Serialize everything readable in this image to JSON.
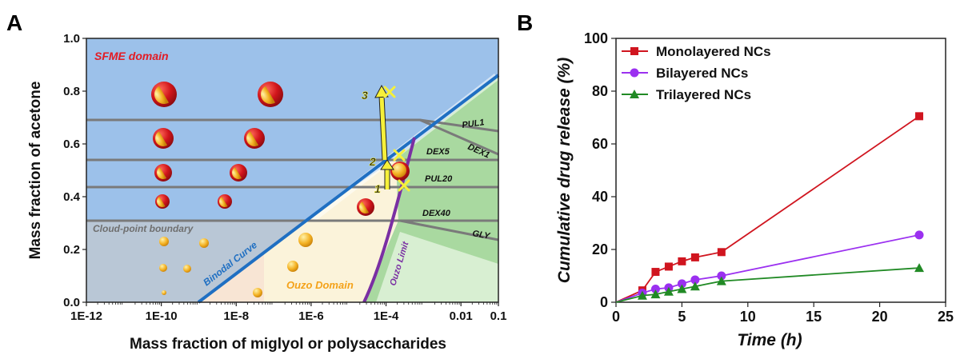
{
  "panel_a_label": "A",
  "panel_b_label": "B",
  "colors": {
    "sfme": "#9cc1ea",
    "cloud": "#b9c7d6",
    "ouzo": "#fbf6d6",
    "green": "#a9d9a0",
    "binodal": "#1f6fc2",
    "ouzo_limit": "#7a2fa3",
    "grid_line": "#7a7a7a",
    "droplet_red": "#d1151b",
    "droplet_yellow": "#f4b224",
    "arrow": "#f6f03a",
    "mono": "#d0151f",
    "bi": "#9b30f0",
    "tri": "#218a25"
  },
  "chart_data": [
    {
      "type": "diagram",
      "xlabel": "Mass fraction of miglyol or polysaccharides",
      "ylabel": "Mass fraction of acetone",
      "xscale": "log",
      "xticks": [
        "1E-12",
        "1E-10",
        "1E-8",
        "1E-6",
        "1E-4",
        "0.01",
        "0.1"
      ],
      "xtick_values": [
        -12,
        -10,
        -8,
        -6,
        -4,
        -2,
        -1
      ],
      "xlim_log10": [
        -12,
        -1
      ],
      "yticks": [
        "0.0",
        "0.2",
        "0.4",
        "0.6",
        "0.8",
        "1.0"
      ],
      "ytick_values": [
        0,
        0.2,
        0.4,
        0.6,
        0.8,
        1.0
      ],
      "ylim": [
        0,
        1
      ],
      "region_labels": {
        "sfme": "SFME domain",
        "cloud": "Cloud-point boundary",
        "binodal": "Binodal Curve",
        "ouzo": "Ouzo Domain",
        "ouzo_limit": "Ouzo Limit"
      },
      "polymer_lines": [
        {
          "label": "PUL1",
          "y": 0.7
        },
        {
          "label": "DEX1",
          "y": 0.7
        },
        {
          "label": "DEX5",
          "y": 0.545
        },
        {
          "label": "PUL20",
          "y": 0.44
        },
        {
          "label": "DEX40",
          "y": 0.31
        },
        {
          "label": "GLY",
          "y": 0.31
        }
      ],
      "arrow_labels": [
        "1",
        "2",
        "3"
      ]
    },
    {
      "type": "line",
      "xlabel": "Time (h)",
      "ylabel": "Cumulative drug release (%)",
      "xlim": [
        0,
        25
      ],
      "ylim": [
        0,
        100
      ],
      "xticks": [
        0,
        5,
        10,
        15,
        20,
        25
      ],
      "yticks": [
        0,
        20,
        40,
        60,
        80,
        100
      ],
      "legend_position": "top-left",
      "series": [
        {
          "name": "Monolayered NCs",
          "marker": "square",
          "x": [
            0,
            2,
            3,
            4,
            5,
            6,
            8,
            23
          ],
          "y": [
            0,
            4.5,
            11.5,
            13.5,
            15.5,
            17,
            19,
            70.5
          ]
        },
        {
          "name": "Bilayered NCs",
          "marker": "circle",
          "x": [
            0,
            2,
            3,
            4,
            5,
            6,
            8,
            23
          ],
          "y": [
            0,
            3.5,
            5,
            5.5,
            7,
            8.5,
            10,
            25.5
          ]
        },
        {
          "name": "Trilayered NCs",
          "marker": "triangle",
          "x": [
            0,
            2,
            3,
            4,
            5,
            6,
            8,
            23
          ],
          "y": [
            0,
            2.5,
            3,
            4,
            5,
            6,
            8,
            13
          ]
        }
      ]
    }
  ]
}
